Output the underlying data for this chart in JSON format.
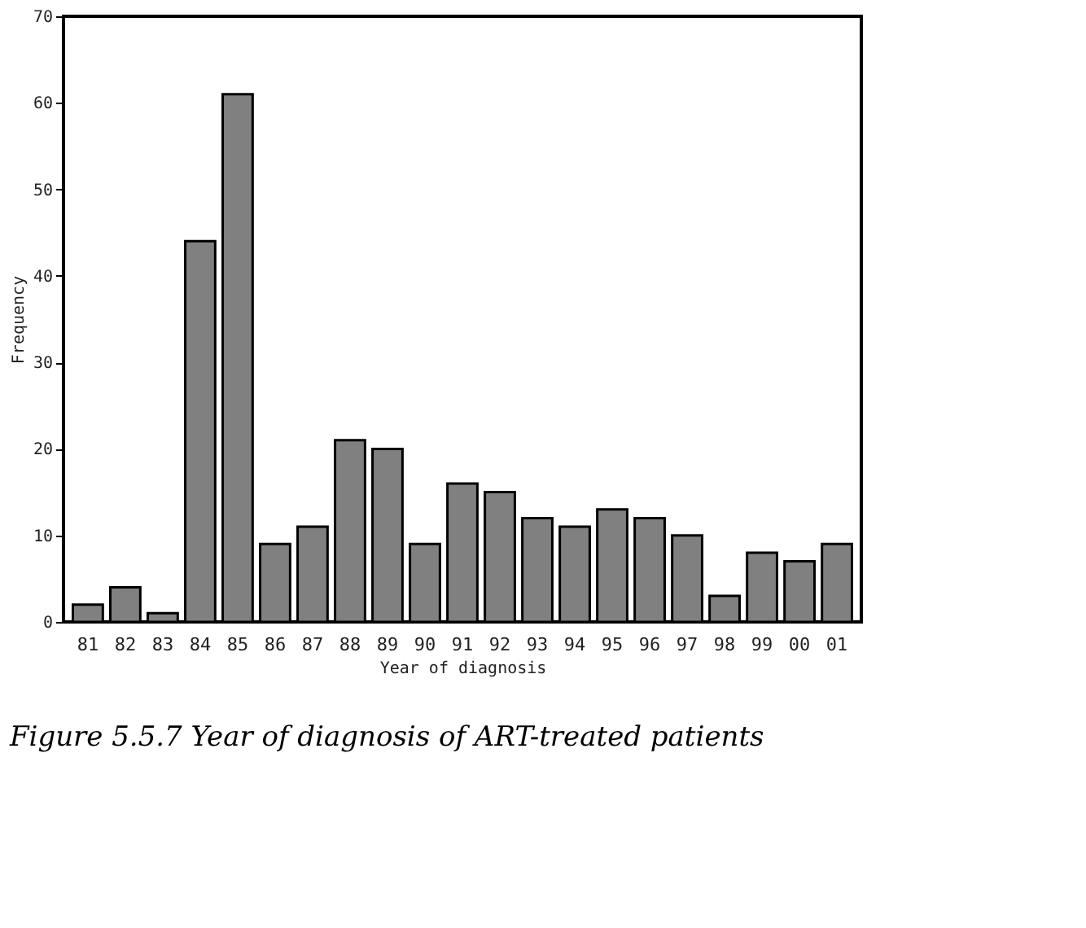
{
  "chart_data": {
    "type": "bar",
    "title": "Figure 5.5.7 Year of diagnosis of ART-treated patients",
    "xlabel": "Year of diagnosis",
    "ylabel": "Frequency",
    "categories": [
      "81",
      "82",
      "83",
      "84",
      "85",
      "86",
      "87",
      "88",
      "89",
      "90",
      "91",
      "92",
      "93",
      "94",
      "95",
      "96",
      "97",
      "98",
      "99",
      "00",
      "01"
    ],
    "values": [
      2,
      4,
      1,
      44,
      61,
      9,
      11,
      21,
      20,
      9,
      16,
      15,
      12,
      11,
      13,
      12,
      10,
      3,
      8,
      7,
      9
    ],
    "color": "#808080",
    "ylim": [
      0,
      70
    ],
    "yticks": [
      0,
      10,
      20,
      30,
      40,
      50,
      60,
      70
    ],
    "grid": false
  }
}
